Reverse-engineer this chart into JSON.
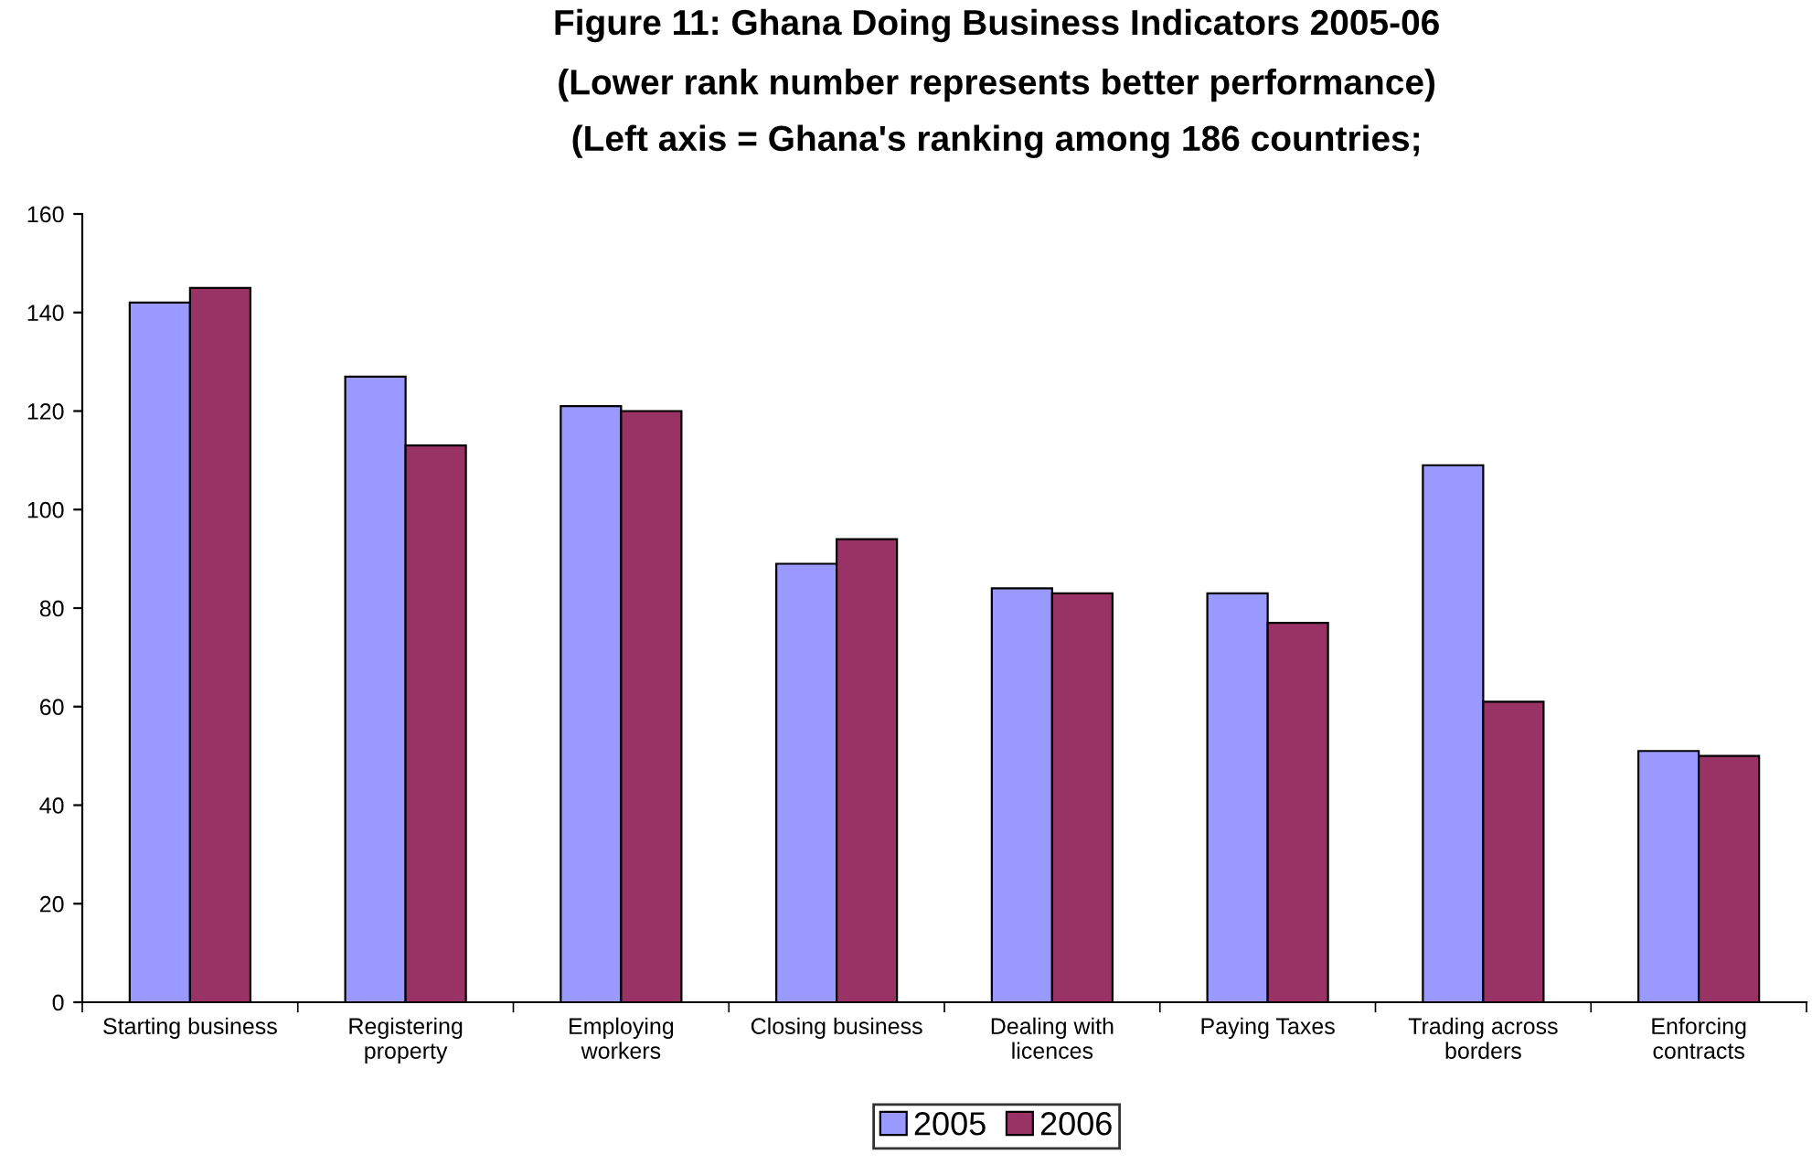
{
  "chart_data": {
    "type": "bar",
    "title": "Figure 11: Ghana Doing Business Indicators 2005-06",
    "subtitle": "(Lower rank number represents better performance)\n(Left axis = Ghana's ranking among 186 countries;",
    "categories": [
      "Starting business",
      "Registering\nproperty",
      "Employing\nworkers",
      "Closing business",
      "Dealing with\nlicences",
      "Paying Taxes",
      "Trading across\nborders",
      "Enforcing\ncontracts"
    ],
    "series": [
      {
        "name": "2005",
        "color": "#9999ff",
        "values": [
          142,
          127,
          121,
          89,
          84,
          83,
          109,
          51
        ]
      },
      {
        "name": "2006",
        "color": "#993366",
        "values": [
          145,
          113,
          120,
          94,
          83,
          77,
          61,
          50
        ]
      }
    ],
    "ylim": [
      0,
      160
    ],
    "yticks": [
      0,
      20,
      40,
      60,
      80,
      100,
      120,
      140,
      160
    ],
    "grid": false,
    "legend": "bottom"
  }
}
